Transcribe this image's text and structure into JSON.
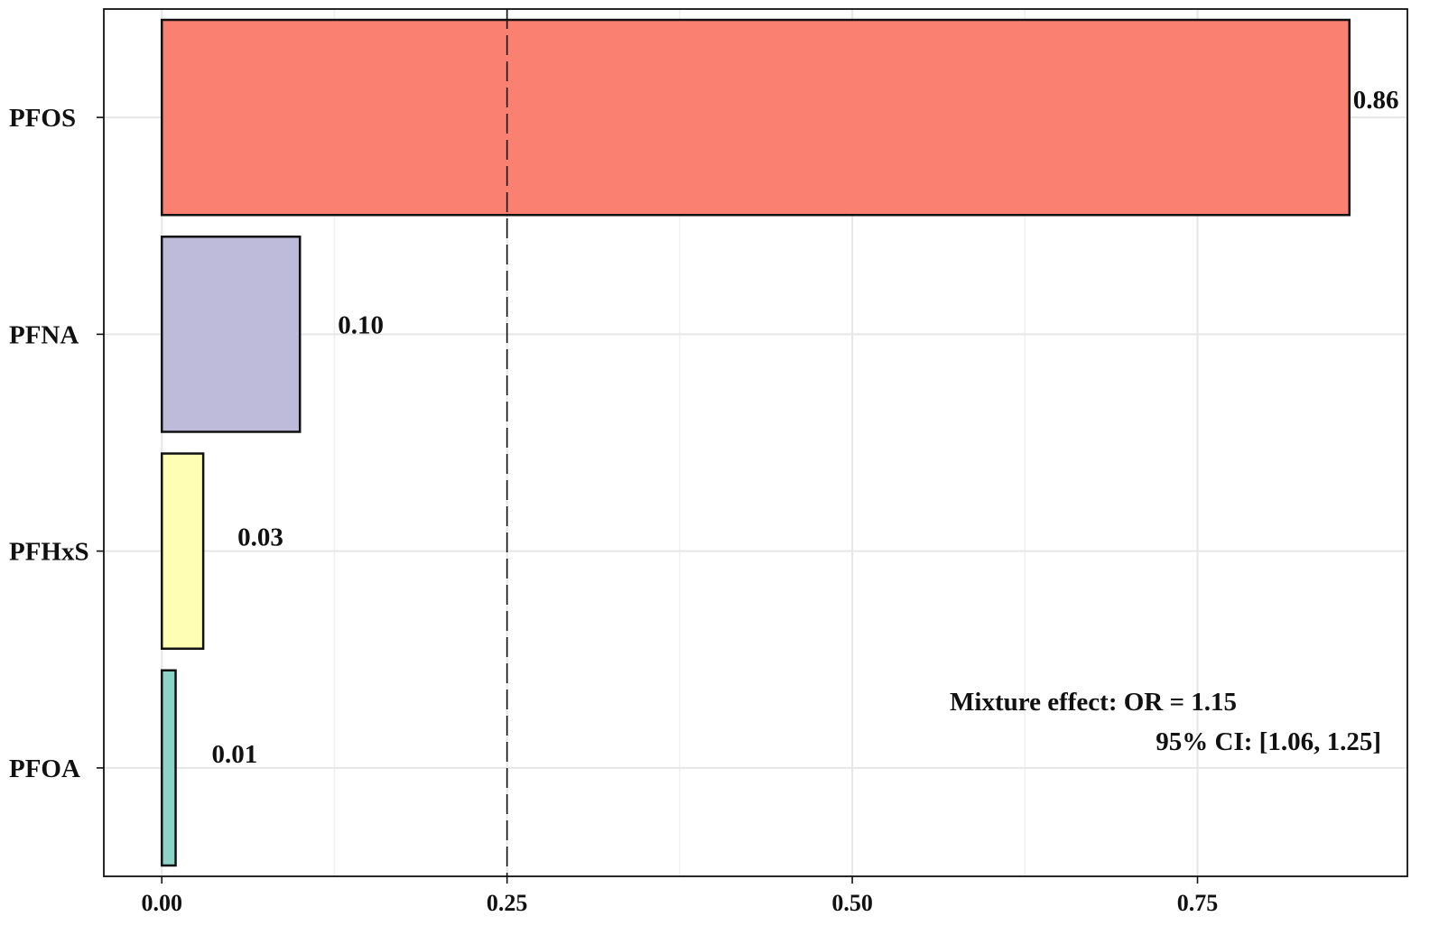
{
  "chart_data": {
    "type": "bar",
    "orientation": "horizontal",
    "categories": [
      "PFOS",
      "PFNA",
      "PFHxS",
      "PFOA"
    ],
    "values": [
      0.86,
      0.1,
      0.03,
      0.01
    ],
    "value_labels": [
      "0.86",
      "0.10",
      "0.03",
      "0.01"
    ],
    "colors": [
      "#FA8072",
      "#BEBADA",
      "#FFFFB3",
      "#8DD3C7"
    ],
    "xlim": [
      -0.042,
      0.902
    ],
    "xticks": [
      0.0,
      0.25,
      0.5,
      0.75
    ],
    "xtick_labels": [
      "0.00",
      "0.25",
      "0.50",
      "0.75"
    ],
    "reference_line": {
      "x": 0.25,
      "style": "dashed"
    },
    "grid": true,
    "legend": "none",
    "title": "",
    "xlabel": "",
    "ylabel": "",
    "annotation": {
      "line1": "Mixture effect: OR = 1.15",
      "line2": "95% CI: [1.06, 1.25]",
      "position": "bottom-right"
    }
  }
}
